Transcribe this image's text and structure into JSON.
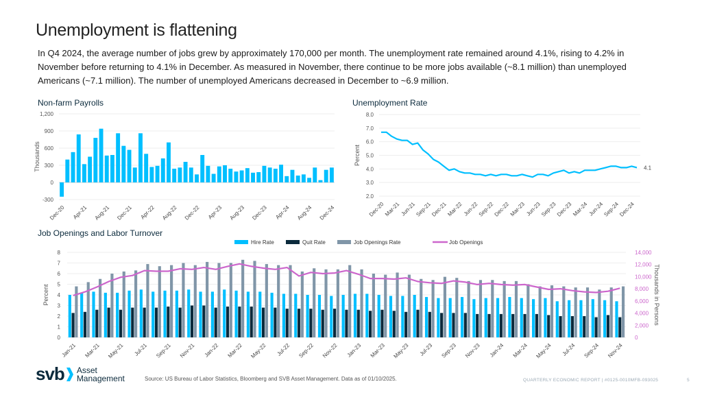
{
  "page": {
    "title": "Unemployment is flattening",
    "paragraph": "In Q4 2024, the average number of jobs grew by approximately 170,000 per month. The unemployment rate remained around 4.1%, rising to 4.2% in November before returning to 4.1% in December. As measured in November, there continue to be more jobs available (~8.1 million) than unemployed Americans (~7.1 million). The number of unemployed Americans decreased in December to ~6.9 million."
  },
  "footer": {
    "logo_main": "svb",
    "logo_line1": "Asset",
    "logo_line2": "Management",
    "source": "Source: US Bureau of Labor Statistics, Bloomberg and SVB Asset Management. Data as of 01/10/2025.",
    "report": "QUARTERLY ECONOMIC REPORT | #0125-0010MFB-093025",
    "page_number": "5"
  },
  "colors": {
    "cyan": "#00bfff",
    "navy": "#0b2a3c",
    "gray": "#8096a8",
    "magenta": "#cc66cc",
    "grid": "#eeeeee"
  },
  "chart_data": [
    {
      "type": "bar",
      "title": "Non-farm Payrolls",
      "ylabel": "Thousands",
      "xlabel": "",
      "ylim": [
        -300,
        1200
      ],
      "yticks": [
        -300,
        0,
        300,
        600,
        900,
        1200
      ],
      "ytick_labels": [
        "-300",
        "0",
        "300",
        "600",
        "900",
        "1,200"
      ],
      "grid": true,
      "xtick_labels": [
        "Dec-20",
        "Apr-21",
        "Aug-21",
        "Dec-21",
        "Apr-22",
        "Aug-22",
        "Dec-22",
        "Apr-23",
        "Aug-23",
        "Dec-23",
        "Apr-24",
        "Aug-24",
        "Dec-24"
      ],
      "xtick_every": 4,
      "categories": [
        "Dec-20",
        "Jan-21",
        "Feb-21",
        "Mar-21",
        "Apr-21",
        "May-21",
        "Jun-21",
        "Jul-21",
        "Aug-21",
        "Sep-21",
        "Oct-21",
        "Nov-21",
        "Dec-21",
        "Jan-22",
        "Feb-22",
        "Mar-22",
        "Apr-22",
        "May-22",
        "Jun-22",
        "Jul-22",
        "Aug-22",
        "Sep-22",
        "Oct-22",
        "Nov-22",
        "Dec-22",
        "Jan-23",
        "Feb-23",
        "Mar-23",
        "Apr-23",
        "May-23",
        "Jun-23",
        "Jul-23",
        "Aug-23",
        "Sep-23",
        "Oct-23",
        "Nov-23",
        "Dec-23",
        "Jan-24",
        "Feb-24",
        "Mar-24",
        "Apr-24",
        "May-24",
        "Jun-24",
        "Jul-24",
        "Aug-24",
        "Sep-24",
        "Oct-24",
        "Nov-24",
        "Dec-24"
      ],
      "values": [
        -250,
        400,
        530,
        840,
        320,
        450,
        780,
        940,
        470,
        480,
        860,
        640,
        570,
        260,
        860,
        500,
        270,
        290,
        420,
        700,
        240,
        260,
        360,
        260,
        140,
        480,
        290,
        150,
        280,
        300,
        240,
        190,
        210,
        250,
        170,
        180,
        290,
        260,
        240,
        310,
        110,
        220,
        120,
        140,
        80,
        260,
        40,
        220,
        260
      ]
    },
    {
      "type": "line",
      "title": "Unemployment Rate",
      "ylabel": "Percent",
      "xlabel": "",
      "ylim": [
        2.0,
        8.0
      ],
      "yticks": [
        2.0,
        3.0,
        4.0,
        5.0,
        6.0,
        7.0,
        8.0
      ],
      "ytick_labels": [
        "2.0",
        "3.0",
        "4.0",
        "5.0",
        "6.0",
        "7.0",
        "8.0"
      ],
      "grid": true,
      "end_label": "4.1",
      "xtick_labels": [
        "Dec-20",
        "Mar-21",
        "Jun-21",
        "Sep-21",
        "Dec-21",
        "Mar-22",
        "Jun-22",
        "Sep-22",
        "Dec-22",
        "Mar-23",
        "Jun-23",
        "Sep-23",
        "Dec-23",
        "Mar-24",
        "Jun-24",
        "Sep-24",
        "Dec-24"
      ],
      "xtick_every": 3,
      "categories": [
        "Dec-20",
        "Jan-21",
        "Feb-21",
        "Mar-21",
        "Apr-21",
        "May-21",
        "Jun-21",
        "Jul-21",
        "Aug-21",
        "Sep-21",
        "Oct-21",
        "Nov-21",
        "Dec-21",
        "Jan-22",
        "Feb-22",
        "Mar-22",
        "Apr-22",
        "May-22",
        "Jun-22",
        "Jul-22",
        "Aug-22",
        "Sep-22",
        "Oct-22",
        "Nov-22",
        "Dec-22",
        "Jan-23",
        "Feb-23",
        "Mar-23",
        "Apr-23",
        "May-23",
        "Jun-23",
        "Jul-23",
        "Aug-23",
        "Sep-23",
        "Oct-23",
        "Nov-23",
        "Dec-23",
        "Jan-24",
        "Feb-24",
        "Mar-24",
        "Apr-24",
        "May-24",
        "Jun-24",
        "Jul-24",
        "Aug-24",
        "Sep-24",
        "Oct-24",
        "Nov-24",
        "Dec-24"
      ],
      "values": [
        6.7,
        6.7,
        6.4,
        6.2,
        6.1,
        6.1,
        5.8,
        5.9,
        5.4,
        5.1,
        4.7,
        4.5,
        4.2,
        3.9,
        4.0,
        3.8,
        3.7,
        3.7,
        3.6,
        3.6,
        3.5,
        3.6,
        3.5,
        3.6,
        3.6,
        3.5,
        3.5,
        3.6,
        3.5,
        3.4,
        3.6,
        3.6,
        3.5,
        3.7,
        3.8,
        3.9,
        3.7,
        3.8,
        3.7,
        3.9,
        3.9,
        3.9,
        4.0,
        4.1,
        4.2,
        4.2,
        4.1,
        4.1,
        4.2,
        4.1
      ]
    },
    {
      "type": "bar",
      "title": "Job Openings and Labor Turnover",
      "ylabel": "Percent",
      "y2label": "Thousands in Persons",
      "xlabel": "",
      "ylim": [
        0,
        8
      ],
      "yticks": [
        0,
        1,
        2,
        3,
        4,
        5,
        6,
        7,
        8
      ],
      "ytick_labels": [
        "0",
        "1",
        "2",
        "3",
        "4",
        "5",
        "6",
        "7",
        "8"
      ],
      "y2lim": [
        0,
        14000
      ],
      "y2ticks": [
        0,
        2000,
        4000,
        6000,
        8000,
        10000,
        12000,
        14000
      ],
      "y2tick_labels": [
        "0",
        "2,000",
        "4,000",
        "6,000",
        "8,000",
        "10,000",
        "12,000",
        "14,000"
      ],
      "grid": true,
      "legend": [
        "Hire Rate",
        "Quit Rate",
        "Job Openings Rate",
        "Job Openings"
      ],
      "legend_position": "top-center",
      "xtick_labels": [
        "Jan-21",
        "Mar-21",
        "May-21",
        "Jul-21",
        "Sep-21",
        "Nov-21",
        "Jan-22",
        "Mar-22",
        "May-22",
        "Jul-22",
        "Sep-22",
        "Nov-22",
        "Jan-23",
        "Mar-23",
        "May-23",
        "Jul-23",
        "Sep-23",
        "Nov-23",
        "Jan-24",
        "Mar-24",
        "May-24",
        "Jul-24",
        "Sep-24",
        "Nov-24"
      ],
      "xtick_every": 2,
      "categories": [
        "Jan-21",
        "Feb-21",
        "Mar-21",
        "Apr-21",
        "May-21",
        "Jun-21",
        "Jul-21",
        "Aug-21",
        "Sep-21",
        "Oct-21",
        "Nov-21",
        "Dec-21",
        "Jan-22",
        "Feb-22",
        "Mar-22",
        "Apr-22",
        "May-22",
        "Jun-22",
        "Jul-22",
        "Aug-22",
        "Sep-22",
        "Oct-22",
        "Nov-22",
        "Dec-22",
        "Jan-23",
        "Feb-23",
        "Mar-23",
        "Apr-23",
        "May-23",
        "Jun-23",
        "Jul-23",
        "Aug-23",
        "Sep-23",
        "Oct-23",
        "Nov-23",
        "Dec-23",
        "Jan-24",
        "Feb-24",
        "Mar-24",
        "Apr-24",
        "May-24",
        "Jun-24",
        "Jul-24",
        "Aug-24",
        "Sep-24",
        "Oct-24",
        "Nov-24"
      ],
      "series": [
        {
          "name": "Hire Rate",
          "axis": "left",
          "kind": "bar",
          "values": [
            4.0,
            4.2,
            4.3,
            4.2,
            4.2,
            4.4,
            4.5,
            4.3,
            4.4,
            4.4,
            4.5,
            4.3,
            4.3,
            4.5,
            4.4,
            4.3,
            4.3,
            4.2,
            4.1,
            4.1,
            4.0,
            4.0,
            3.9,
            4.0,
            4.1,
            4.1,
            4.0,
            3.9,
            3.9,
            4.0,
            3.8,
            3.7,
            3.7,
            3.8,
            3.6,
            3.7,
            3.7,
            3.8,
            3.7,
            3.6,
            3.7,
            3.4,
            3.5,
            3.5,
            3.6,
            3.5,
            3.4
          ]
        },
        {
          "name": "Quit Rate",
          "axis": "left",
          "kind": "bar",
          "values": [
            2.3,
            2.4,
            2.6,
            2.8,
            2.6,
            2.8,
            2.8,
            2.8,
            2.9,
            2.8,
            3.0,
            3.0,
            2.8,
            2.9,
            2.9,
            2.9,
            2.8,
            2.8,
            2.7,
            2.7,
            2.7,
            2.6,
            2.7,
            2.6,
            2.6,
            2.5,
            2.6,
            2.5,
            2.4,
            2.6,
            2.4,
            2.3,
            2.3,
            2.3,
            2.2,
            2.2,
            2.2,
            2.2,
            2.2,
            2.2,
            2.1,
            2.0,
            2.0,
            2.0,
            1.9,
            2.1,
            1.9
          ]
        },
        {
          "name": "Job Openings Rate",
          "axis": "left",
          "kind": "bar",
          "values": [
            4.8,
            5.2,
            5.5,
            6.0,
            6.2,
            6.3,
            6.9,
            6.7,
            6.8,
            7.0,
            6.8,
            7.1,
            7.0,
            7.0,
            7.3,
            7.2,
            6.9,
            6.8,
            6.8,
            6.2,
            6.5,
            6.4,
            6.4,
            6.8,
            6.4,
            6.0,
            5.9,
            6.1,
            5.9,
            5.5,
            5.4,
            5.7,
            5.6,
            5.3,
            5.4,
            5.4,
            5.3,
            5.3,
            5.0,
            4.8,
            4.9,
            4.8,
            4.7,
            4.7,
            4.5,
            4.7,
            4.8
          ]
        },
        {
          "name": "Job Openings",
          "axis": "right",
          "kind": "line",
          "values": [
            6900,
            7500,
            8300,
            9200,
            9900,
            10200,
            11000,
            10900,
            10900,
            11300,
            11200,
            11500,
            11200,
            11700,
            12100,
            11700,
            11400,
            11200,
            11500,
            10100,
            10700,
            10500,
            10600,
            11000,
            10400,
            9700,
            9700,
            9600,
            9800,
            9200,
            9000,
            8900,
            9300,
            9100,
            8700,
            8900,
            8700,
            8600,
            8700,
            8300,
            7900,
            8000,
            7700,
            7500,
            7400,
            7600,
            8100
          ]
        }
      ]
    }
  ]
}
